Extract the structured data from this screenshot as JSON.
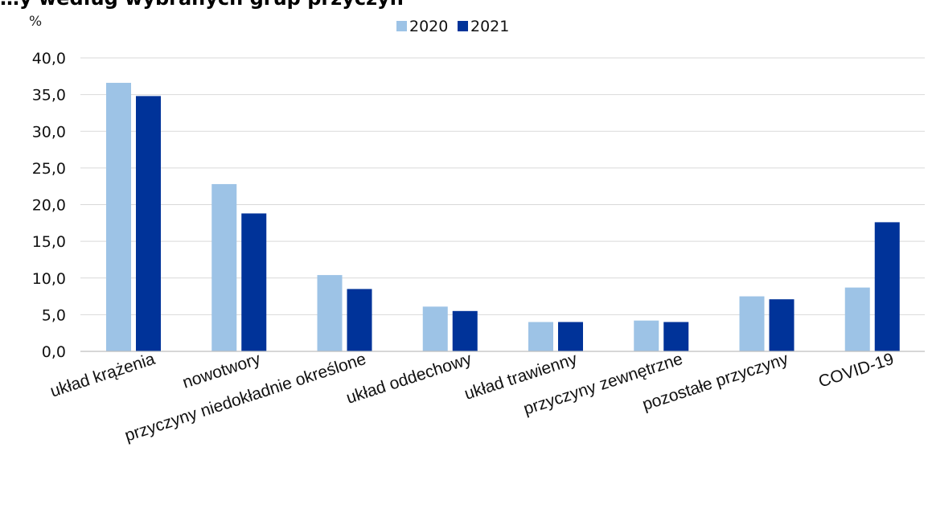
{
  "chart_data": {
    "type": "bar",
    "title": "…y według wybranych grup przyczyn",
    "unit_label": "%",
    "categories": [
      "układ krążenia",
      "nowotwory",
      "przyczyny niedokładnie określone",
      "układ oddechowy",
      "układ trawienny",
      "przyczyny zewnętrzne",
      "pozostałe przyczyny",
      "COVID-19"
    ],
    "series": [
      {
        "name": "2020",
        "color": "#9dc3e6",
        "values": [
          36.6,
          22.8,
          10.4,
          6.1,
          4.0,
          4.2,
          7.5,
          8.7
        ]
      },
      {
        "name": "2021",
        "color": "#003399",
        "values": [
          34.8,
          18.8,
          8.5,
          5.5,
          4.0,
          4.0,
          7.1,
          17.6
        ]
      }
    ],
    "ylim": [
      0,
      40
    ],
    "yticks": [
      "0,0",
      "5,0",
      "10,0",
      "15,0",
      "20,0",
      "25,0",
      "30,0",
      "35,0",
      "40,0"
    ],
    "grid": true,
    "legend_position": "top-center"
  }
}
